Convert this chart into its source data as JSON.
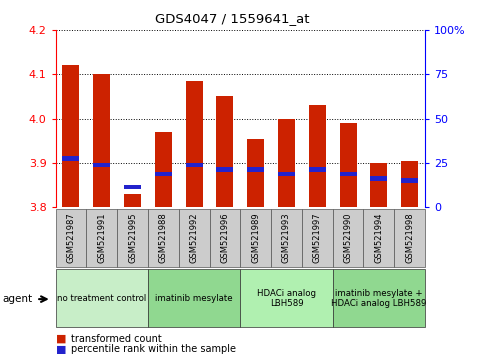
{
  "title": "GDS4047 / 1559641_at",
  "samples": [
    "GSM521987",
    "GSM521991",
    "GSM521995",
    "GSM521988",
    "GSM521992",
    "GSM521996",
    "GSM521989",
    "GSM521993",
    "GSM521997",
    "GSM521990",
    "GSM521994",
    "GSM521998"
  ],
  "red_values": [
    4.12,
    4.1,
    3.83,
    3.97,
    4.085,
    4.05,
    3.955,
    4.0,
    4.03,
    3.99,
    3.9,
    3.905
  ],
  "blue_values": [
    3.91,
    3.895,
    3.845,
    3.875,
    3.895,
    3.885,
    3.885,
    3.875,
    3.885,
    3.875,
    3.865,
    3.86
  ],
  "ylim": [
    3.8,
    4.2
  ],
  "yticks_left": [
    3.8,
    3.9,
    4.0,
    4.1,
    4.2
  ],
  "yticks_right": [
    0,
    25,
    50,
    75,
    100
  ],
  "groups": [
    {
      "label": "no treatment control",
      "start": 0,
      "end": 3,
      "color": "#c8eec8"
    },
    {
      "label": "imatinib mesylate",
      "start": 3,
      "end": 6,
      "color": "#90d890"
    },
    {
      "label": "HDACi analog\nLBH589",
      "start": 6,
      "end": 9,
      "color": "#b0f0b0"
    },
    {
      "label": "imatinib mesylate +\nHDACi analog LBH589",
      "start": 9,
      "end": 12,
      "color": "#90d890"
    }
  ],
  "bar_width": 0.55,
  "bar_color": "#cc2200",
  "blue_color": "#2222cc",
  "sample_bg": "#cccccc",
  "plot_bg": "#ffffff",
  "grid_color": "#000000",
  "agent_label": "agent"
}
